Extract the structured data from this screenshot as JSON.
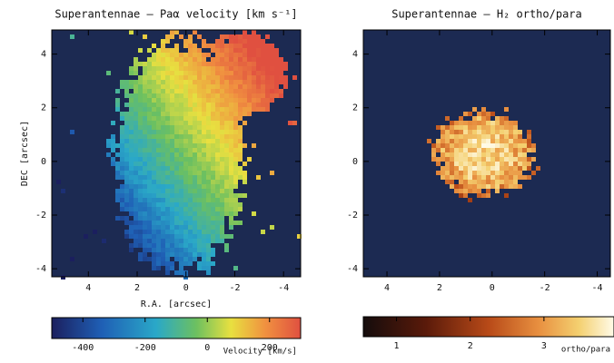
{
  "chart_data": [
    {
      "type": "image",
      "title": "Superantennae – Paα velocity [km s⁻¹]",
      "xlabel": "R.A. [arcsec]",
      "ylabel": "DEC [arcsec]",
      "xlim": [
        5.5,
        -4.7
      ],
      "ylim": [
        -4.3,
        4.9
      ],
      "xticks": [
        4,
        2,
        0,
        -2,
        -4
      ],
      "yticks": [
        -4,
        -2,
        0,
        2,
        4
      ],
      "colorbar": {
        "label": "Velocity [km/s]",
        "lim": [
          -500,
          300
        ],
        "ticks": [
          -400,
          -200,
          0,
          200
        ]
      }
    },
    {
      "type": "image",
      "title": "Superantennae – H₂ ortho/para",
      "xlim": [
        4.9,
        -4.5
      ],
      "ylim": [
        -4.3,
        4.9
      ],
      "xticks": [
        4,
        2,
        0,
        -2,
        -4
      ],
      "yticks": [
        -4,
        -2,
        0,
        2,
        4
      ],
      "colorbar": {
        "label": "ortho/para",
        "lim": [
          0.55,
          3.95
        ],
        "ticks": [
          1,
          2,
          3
        ]
      }
    }
  ]
}
